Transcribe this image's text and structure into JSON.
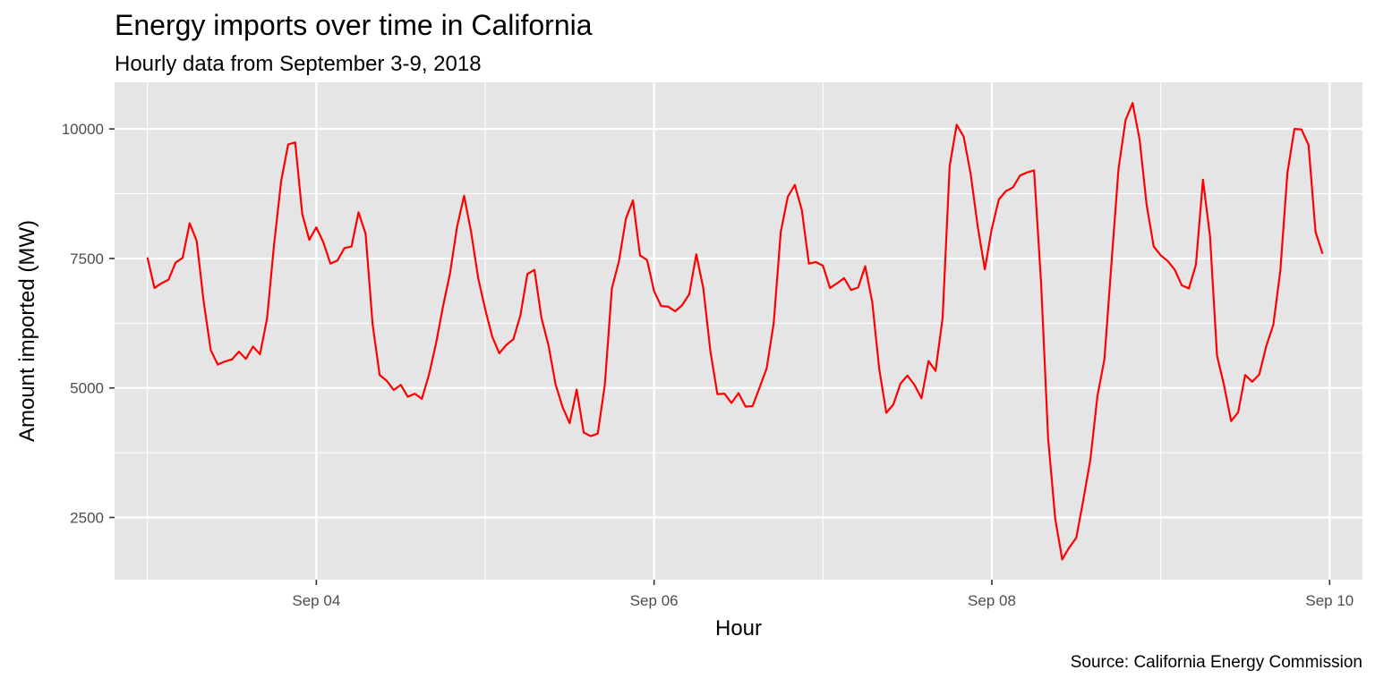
{
  "chart_data": {
    "type": "line",
    "title": "Energy imports over time in California",
    "subtitle": "Hourly data from September 3-9, 2018",
    "caption": "Source: California Energy Commission",
    "xlabel": "Hour",
    "ylabel": "Amount imported (MW)",
    "x_ticks": [
      {
        "date": "2018-09-04",
        "label": "Sep 04"
      },
      {
        "date": "2018-09-06",
        "label": "Sep 06"
      },
      {
        "date": "2018-09-08",
        "label": "Sep 08"
      },
      {
        "date": "2018-09-10",
        "label": "Sep 10"
      }
    ],
    "y_ticks": [
      2500,
      5000,
      7500,
      10000
    ],
    "xlim": [
      "2018-09-02T19:20",
      "2018-09-10T04:40"
    ],
    "ylim": [
      1300,
      10900
    ],
    "grid": true,
    "colors": {
      "line": "#ff0000",
      "panel": "#e5e5e5",
      "grid": "#ffffff"
    },
    "series": [
      {
        "start": "2018-09-03T00:00",
        "interval_hours": 1,
        "values": [
          7520,
          6930,
          7020,
          7090,
          7420,
          7510,
          8180,
          7840,
          6660,
          5730,
          5450,
          5510,
          5550,
          5700,
          5560,
          5800,
          5650,
          6340,
          7770,
          8990,
          9700,
          9740,
          8360,
          7860,
          8100,
          7810,
          7400,
          7460,
          7700,
          7730,
          8390,
          7980,
          6230,
          5250,
          5140,
          4960,
          5060,
          4830,
          4890,
          4790,
          5250,
          5850,
          6570,
          7210,
          8110,
          8710,
          8010,
          7120,
          6520,
          5990,
          5670,
          5830,
          5940,
          6400,
          7200,
          7280,
          6350,
          5820,
          5070,
          4630,
          4320,
          4970,
          4140,
          4070,
          4120,
          5060,
          6920,
          7440,
          8270,
          8620,
          7560,
          7470,
          6870,
          6580,
          6570,
          6480,
          6600,
          6810,
          7580,
          6920,
          5710,
          4880,
          4890,
          4710,
          4900,
          4640,
          4650,
          5010,
          5380,
          6250,
          8010,
          8690,
          8920,
          8430,
          7400,
          7430,
          7360,
          6930,
          7020,
          7120,
          6890,
          6940,
          7350,
          6660,
          5360,
          4520,
          4680,
          5080,
          5240,
          5060,
          4800,
          5520,
          5330,
          6350,
          9280,
          10080,
          9850,
          9120,
          8110,
          7290,
          8080,
          8640,
          8800,
          8870,
          9100,
          9160,
          9200,
          7020,
          4020,
          2480,
          1690,
          1920,
          2110,
          2840,
          3620,
          4840,
          5560,
          7410,
          9230,
          10170,
          10500,
          9790,
          8530,
          7730,
          7560,
          7450,
          7280,
          6980,
          6920,
          7380,
          9020,
          7930,
          5620,
          5050,
          4360,
          4530,
          5250,
          5120,
          5260,
          5810,
          6220,
          7270,
          9150,
          10000,
          9990,
          9690,
          8010,
          7590
        ]
      }
    ]
  }
}
